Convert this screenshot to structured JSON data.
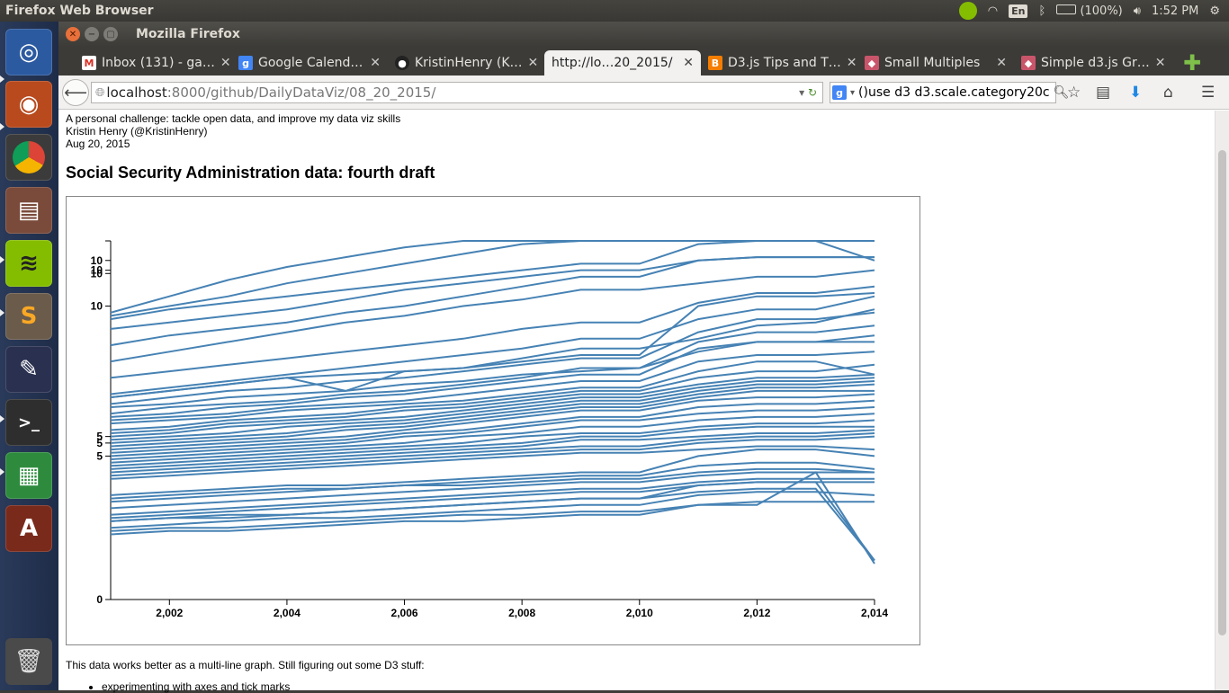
{
  "top_panel": {
    "app_title": "Firefox Web Browser",
    "lang": "En",
    "battery": "(100%)",
    "time": "1:52 PM"
  },
  "launcher": {
    "items": [
      "ubuntu-dash",
      "firefox",
      "chrome",
      "files",
      "spotify",
      "sublime-text",
      "inkscape",
      "terminal",
      "libreoffice-calc",
      "software-updater"
    ],
    "trash": "trash"
  },
  "window": {
    "title": "Mozilla Firefox"
  },
  "tabs": [
    {
      "label": "Inbox (131) - ga…",
      "favicon": "gmail-icon"
    },
    {
      "label": "Google Calend…",
      "favicon": "google-icon"
    },
    {
      "label": "KristinHenry (K…",
      "favicon": "github-icon"
    },
    {
      "label": "http://lo…20_2015/",
      "favicon": "",
      "active": true
    },
    {
      "label": "D3.js Tips and T…",
      "favicon": "blogger-icon"
    },
    {
      "label": "Small Multiples",
      "favicon": "bl-ocks-icon"
    },
    {
      "label": "Simple d3.js Gr…",
      "favicon": "bl-ocks-icon"
    }
  ],
  "nav": {
    "url_host": "localhost",
    "url_path": ":8000/github/DailyDataViz/08_20_2015/",
    "search_value": "use d3 d3.scale.category20c()"
  },
  "page": {
    "intro_line1": "A personal challenge: tackle open data, and improve my data viz skills",
    "intro_line2": "Kristin Henry (@KristinHenry)",
    "intro_line3": "Aug 20, 2015",
    "heading": "Social Security Administration data: fourth draft",
    "note": "This data works better as a multi-line graph. Still figuring out some D3 stuff:",
    "bullets": [
      "experimenting with axes and tick marks"
    ]
  },
  "chart_data": {
    "type": "line",
    "line_color": "#4682b4",
    "x": [
      2001,
      2002,
      2003,
      2004,
      2005,
      2006,
      2007,
      2008,
      2009,
      2010,
      2011,
      2012,
      2013,
      2014
    ],
    "x_tick_labels": [
      "2,002",
      "2,004",
      "2,006",
      "2,008",
      "2,010",
      "2,012",
      "2,014"
    ],
    "y_tick_labels": [
      "0",
      "5",
      "5",
      "5",
      "10",
      "10",
      "10",
      "10"
    ],
    "xlim": [
      2001,
      2014
    ],
    "ylim": [
      0,
      11
    ],
    "series": [
      {
        "values": [
          8.8,
          9.3,
          9.8,
          10.2,
          10.5,
          10.8,
          11.0,
          11.0,
          11.0,
          11.0,
          11.0,
          11.0,
          11.0,
          11.0
        ]
      },
      {
        "values": [
          8.7,
          9.0,
          9.3,
          9.7,
          10.0,
          10.3,
          10.6,
          10.9,
          11.0,
          11.0,
          11.0,
          11.0,
          11.0,
          10.4
        ]
      },
      {
        "values": [
          8.6,
          8.9,
          9.1,
          9.3,
          9.5,
          9.7,
          9.9,
          10.1,
          10.3,
          10.3,
          10.9,
          11.0,
          11.0,
          11.0
        ]
      },
      {
        "values": [
          8.3,
          8.5,
          8.7,
          8.9,
          9.2,
          9.5,
          9.7,
          9.9,
          10.1,
          10.1,
          10.4,
          10.5,
          10.5,
          10.5
        ]
      },
      {
        "values": [
          7.8,
          8.1,
          8.3,
          8.5,
          8.8,
          9.0,
          9.3,
          9.6,
          9.9,
          9.9,
          10.4,
          10.5,
          10.5,
          10.5
        ]
      },
      {
        "values": [
          7.3,
          7.6,
          7.9,
          8.2,
          8.5,
          8.7,
          9.0,
          9.2,
          9.5,
          9.5,
          9.7,
          9.9,
          9.9,
          10.1
        ]
      },
      {
        "values": [
          6.8,
          7.0,
          7.2,
          7.4,
          7.6,
          7.8,
          8.0,
          8.3,
          8.5,
          8.5,
          9.1,
          9.4,
          9.4,
          9.6
        ]
      },
      {
        "values": [
          6.3,
          6.5,
          6.7,
          6.9,
          7.1,
          7.3,
          7.5,
          7.7,
          8.0,
          8.0,
          8.6,
          8.9,
          8.9,
          9.3
        ]
      },
      {
        "values": [
          6.2,
          6.4,
          6.6,
          6.8,
          6.4,
          7.0,
          7.1,
          7.4,
          7.7,
          7.7,
          8.0,
          8.4,
          8.5,
          8.9
        ]
      },
      {
        "values": [
          6.2,
          6.4,
          6.6,
          6.8,
          6.9,
          7.0,
          7.1,
          7.3,
          7.5,
          7.5,
          9.0,
          9.3,
          9.3,
          9.4
        ]
      },
      {
        "values": [
          6.0,
          6.2,
          6.4,
          6.5,
          6.7,
          6.8,
          7.0,
          7.2,
          7.4,
          7.4,
          8.2,
          8.6,
          8.6,
          8.8
        ]
      },
      {
        "values": [
          5.9,
          6.0,
          6.2,
          6.3,
          6.4,
          6.6,
          6.7,
          6.9,
          7.0,
          7.1,
          7.6,
          7.9,
          7.9,
          8.1
        ]
      },
      {
        "values": [
          5.7,
          5.9,
          6.0,
          6.1,
          6.3,
          6.4,
          6.6,
          6.8,
          7.1,
          7.1,
          7.9,
          8.2,
          8.2,
          8.4
        ]
      },
      {
        "values": [
          5.6,
          5.7,
          5.9,
          6.0,
          6.2,
          6.3,
          6.5,
          6.7,
          6.9,
          6.9,
          7.7,
          7.9,
          7.9,
          7.9
        ]
      },
      {
        "values": [
          5.5,
          5.6,
          5.7,
          5.9,
          6.0,
          6.1,
          6.3,
          6.5,
          6.7,
          6.7,
          7.3,
          7.5,
          7.5,
          7.6
        ]
      },
      {
        "values": [
          5.4,
          5.5,
          5.6,
          5.8,
          5.9,
          6.0,
          6.1,
          6.3,
          6.5,
          6.5,
          7.0,
          7.3,
          7.3,
          6.9
        ]
      },
      {
        "values": [
          5.2,
          5.3,
          5.5,
          5.6,
          5.7,
          5.9,
          6.0,
          6.2,
          6.4,
          6.4,
          6.8,
          7.0,
          7.0,
          7.2
        ]
      },
      {
        "values": [
          5.1,
          5.2,
          5.4,
          5.5,
          5.6,
          5.8,
          5.9,
          6.1,
          6.3,
          6.3,
          6.6,
          6.8,
          6.8,
          6.9
        ]
      },
      {
        "values": [
          5.0,
          5.1,
          5.3,
          5.4,
          5.5,
          5.6,
          5.8,
          6.0,
          6.2,
          6.2,
          6.5,
          6.7,
          6.7,
          6.8
        ]
      },
      {
        "values": [
          4.9,
          5.0,
          5.1,
          5.3,
          5.4,
          5.5,
          5.7,
          5.9,
          6.1,
          6.1,
          6.4,
          6.6,
          6.6,
          6.7
        ]
      },
      {
        "values": [
          4.8,
          4.9,
          5.0,
          5.1,
          5.3,
          5.4,
          5.6,
          5.8,
          6.0,
          6.0,
          6.3,
          6.5,
          6.5,
          6.6
        ]
      },
      {
        "values": [
          4.7,
          4.8,
          4.9,
          5.0,
          5.2,
          5.3,
          5.5,
          5.7,
          5.9,
          5.9,
          6.2,
          6.4,
          6.4,
          6.4
        ]
      },
      {
        "values": [
          4.6,
          4.7,
          4.8,
          4.9,
          5.0,
          5.2,
          5.4,
          5.6,
          5.8,
          5.8,
          6.1,
          6.2,
          6.2,
          6.3
        ]
      },
      {
        "values": [
          4.5,
          4.6,
          4.7,
          4.8,
          4.9,
          5.1,
          5.2,
          5.4,
          5.6,
          5.6,
          5.9,
          6.0,
          6.0,
          6.1
        ]
      },
      {
        "values": [
          4.4,
          4.5,
          4.6,
          4.7,
          4.8,
          5.0,
          5.1,
          5.3,
          5.5,
          5.5,
          5.7,
          5.8,
          5.8,
          5.9
        ]
      },
      {
        "values": [
          4.3,
          4.4,
          4.5,
          4.6,
          4.7,
          4.8,
          5.0,
          5.1,
          5.3,
          5.3,
          5.5,
          5.6,
          5.6,
          5.7
        ]
      },
      {
        "values": [
          4.2,
          4.3,
          4.4,
          4.5,
          4.6,
          4.7,
          4.8,
          5.0,
          5.1,
          5.1,
          5.3,
          5.4,
          5.4,
          5.5
        ]
      },
      {
        "values": [
          4.1,
          4.2,
          4.3,
          4.4,
          4.5,
          4.6,
          4.7,
          4.8,
          5.0,
          5.0,
          5.2,
          5.3,
          5.3,
          5.3
        ]
      },
      {
        "values": [
          4.0,
          4.1,
          4.2,
          4.3,
          4.4,
          4.5,
          4.6,
          4.7,
          4.9,
          4.9,
          5.0,
          5.1,
          5.1,
          5.2
        ]
      },
      {
        "values": [
          3.9,
          4.0,
          4.1,
          4.2,
          4.3,
          4.4,
          4.5,
          4.6,
          4.7,
          4.7,
          4.9,
          5.0,
          5.0,
          5.1
        ]
      },
      {
        "values": [
          3.8,
          3.9,
          4.0,
          4.1,
          4.2,
          4.3,
          4.4,
          4.5,
          4.6,
          4.6,
          4.8,
          4.9,
          4.9,
          5.0
        ]
      },
      {
        "values": [
          3.7,
          3.8,
          3.9,
          4.0,
          4.1,
          4.2,
          4.3,
          4.4,
          4.5,
          4.5,
          4.6,
          4.7,
          4.7,
          4.6
        ]
      },
      {
        "values": [
          3.2,
          3.3,
          3.4,
          3.5,
          3.5,
          3.6,
          3.7,
          3.8,
          3.9,
          3.9,
          4.4,
          4.6,
          4.6,
          4.4
        ]
      },
      {
        "values": [
          3.1,
          3.2,
          3.3,
          3.4,
          3.4,
          3.5,
          3.6,
          3.7,
          3.8,
          3.8,
          4.1,
          4.2,
          4.2,
          4.0
        ]
      },
      {
        "values": [
          3.0,
          3.1,
          3.2,
          3.3,
          3.4,
          3.5,
          3.5,
          3.6,
          3.7,
          3.7,
          3.9,
          4.0,
          4.0,
          3.9
        ]
      },
      {
        "values": [
          2.8,
          2.9,
          3.0,
          3.1,
          3.2,
          3.3,
          3.4,
          3.5,
          3.6,
          3.6,
          3.8,
          3.9,
          3.9,
          3.9
        ]
      },
      {
        "values": [
          2.6,
          2.7,
          2.8,
          2.9,
          3.0,
          3.1,
          3.2,
          3.3,
          3.4,
          3.4,
          3.6,
          3.7,
          3.7,
          3.7
        ]
      },
      {
        "values": [
          2.5,
          2.6,
          2.7,
          2.8,
          2.9,
          3.0,
          3.1,
          3.2,
          3.3,
          3.3,
          3.5,
          3.6,
          3.6,
          3.6
        ]
      },
      {
        "values": [
          2.4,
          2.5,
          2.5,
          2.6,
          2.7,
          2.8,
          2.9,
          3.0,
          3.1,
          3.1,
          3.5,
          3.6,
          3.6,
          1.2
        ]
      },
      {
        "values": [
          2.4,
          2.5,
          2.6,
          2.6,
          2.7,
          2.8,
          2.9,
          3.0,
          3.1,
          3.1,
          3.3,
          3.4,
          3.4,
          1.2
        ]
      },
      {
        "values": [
          2.2,
          2.3,
          2.4,
          2.5,
          2.5,
          2.6,
          2.7,
          2.8,
          2.9,
          2.9,
          3.2,
          3.3,
          3.3,
          3.2
        ]
      },
      {
        "values": [
          2.1,
          2.2,
          2.2,
          2.3,
          2.4,
          2.5,
          2.6,
          2.6,
          2.7,
          2.7,
          2.9,
          3.0,
          3.0,
          3.0
        ]
      },
      {
        "values": [
          2.0,
          2.1,
          2.1,
          2.2,
          2.3,
          2.4,
          2.4,
          2.5,
          2.6,
          2.6,
          2.9,
          2.9,
          3.9,
          1.1
        ]
      }
    ]
  }
}
